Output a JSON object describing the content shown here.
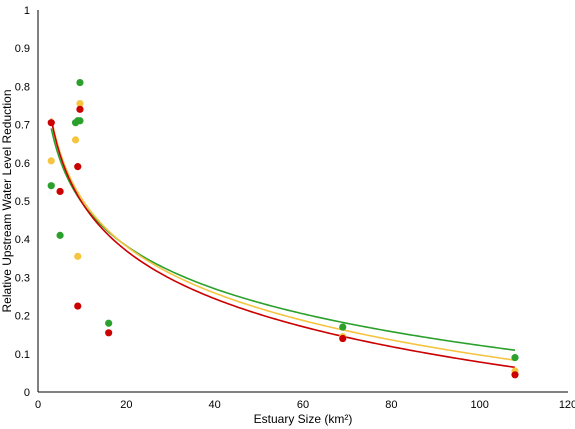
{
  "chart_data": {
    "type": "scatter",
    "xlabel": "Estuary Size (km²)",
    "ylabel": "Relative Upstream Water Level Reduction",
    "xlim": [
      0,
      120
    ],
    "ylim": [
      0,
      1
    ],
    "x_ticks": [
      "0",
      "20",
      "40",
      "60",
      "80",
      "100",
      "120"
    ],
    "y_ticks": [
      "0",
      "0.1",
      "0.2",
      "0.3",
      "0.4",
      "0.5",
      "0.6",
      "0.7",
      "0.8",
      "0.9",
      "1"
    ],
    "grid": false,
    "legend": "none",
    "series": [
      {
        "color": "#2ca02c",
        "points": [
          [
            3,
            0.54
          ],
          [
            5,
            0.41
          ],
          [
            8.5,
            0.705
          ],
          [
            9,
            0.71
          ],
          [
            9.5,
            0.71
          ],
          [
            9.5,
            0.81
          ],
          [
            16,
            0.18
          ],
          [
            69,
            0.17
          ],
          [
            108,
            0.09
          ]
        ],
        "trendline": {
          "type": "logarithmic",
          "a": 0.868,
          "b": -0.162,
          "x_range": [
            3,
            108
          ]
        }
      },
      {
        "color": "#f5c542",
        "points": [
          [
            3,
            0.605
          ],
          [
            9,
            0.355
          ],
          [
            8.5,
            0.66
          ],
          [
            9.5,
            0.755
          ],
          [
            69,
            0.145
          ],
          [
            108,
            0.055
          ]
        ],
        "trendline": {
          "type": "logarithmic",
          "a": 0.912,
          "b": -0.177,
          "x_range": [
            3,
            108
          ]
        }
      },
      {
        "color": "#cc0000",
        "points": [
          [
            3,
            0.705
          ],
          [
            5,
            0.525
          ],
          [
            9,
            0.225
          ],
          [
            9,
            0.59
          ],
          [
            9.5,
            0.74
          ],
          [
            16,
            0.155
          ],
          [
            69,
            0.14
          ],
          [
            108,
            0.045
          ]
        ],
        "trendline": {
          "type": "logarithmic",
          "a": 0.912,
          "b": -0.181,
          "x_range": [
            3,
            108
          ]
        }
      }
    ]
  }
}
